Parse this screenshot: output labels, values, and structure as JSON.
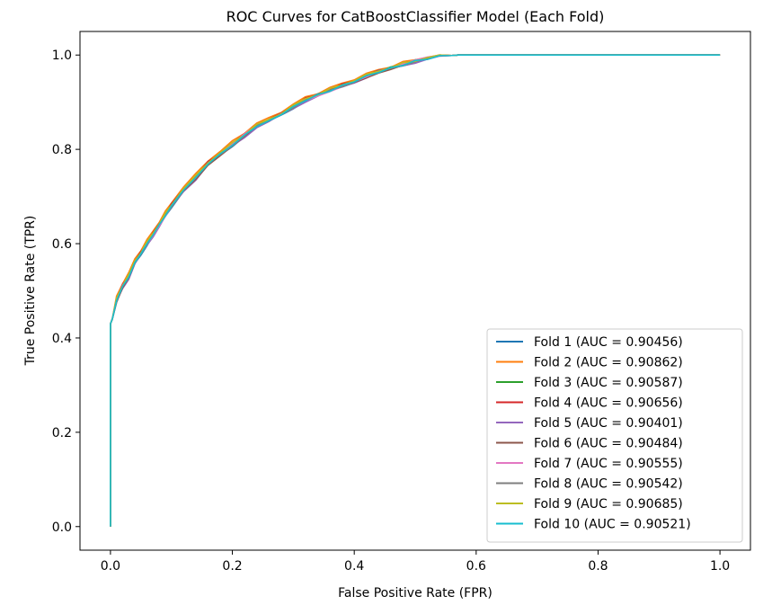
{
  "chart_data": {
    "type": "line",
    "title": "ROC Curves for CatBoostClassifier Model (Each Fold)",
    "xlabel": "False Positive Rate (FPR)",
    "ylabel": "True Positive Rate (TPR)",
    "xlim": [
      -0.05,
      1.05
    ],
    "ylim": [
      -0.05,
      1.05
    ],
    "xticks": [
      "0.0",
      "0.2",
      "0.4",
      "0.6",
      "0.8",
      "1.0"
    ],
    "yticks": [
      "0.0",
      "0.2",
      "0.4",
      "0.6",
      "0.8",
      "1.0"
    ],
    "grid": false,
    "legend_position": "bottom-right",
    "series": [
      {
        "name": "Fold 1 (AUC = 0.90456)",
        "color": "#1f77b4",
        "auc": 0.90456
      },
      {
        "name": "Fold 2 (AUC = 0.90862)",
        "color": "#ff7f0e",
        "auc": 0.90862
      },
      {
        "name": "Fold 3 (AUC = 0.90587)",
        "color": "#2ca02c",
        "auc": 0.90587
      },
      {
        "name": "Fold 4 (AUC = 0.90656)",
        "color": "#d62728",
        "auc": 0.90656
      },
      {
        "name": "Fold 5 (AUC = 0.90401)",
        "color": "#9467bd",
        "auc": 0.90401
      },
      {
        "name": "Fold 6 (AUC = 0.90484)",
        "color": "#8c564b",
        "auc": 0.90484
      },
      {
        "name": "Fold 7 (AUC = 0.90555)",
        "color": "#e377c2",
        "auc": 0.90555
      },
      {
        "name": "Fold 8 (AUC = 0.90542)",
        "color": "#7f7f7f",
        "auc": 0.90542
      },
      {
        "name": "Fold 9 (AUC = 0.90685)",
        "color": "#bcbd22",
        "auc": 0.90685
      },
      {
        "name": "Fold 10 (AUC = 0.90521)",
        "color": "#17becf",
        "auc": 0.90521
      }
    ],
    "curve_points": {
      "x": [
        0,
        0,
        0.003,
        0.01,
        0.02,
        0.03,
        0.04,
        0.05,
        0.06,
        0.07,
        0.08,
        0.09,
        0.1,
        0.12,
        0.14,
        0.16,
        0.18,
        0.2,
        0.22,
        0.24,
        0.26,
        0.28,
        0.3,
        0.32,
        0.34,
        0.36,
        0.38,
        0.4,
        0.42,
        0.44,
        0.46,
        0.48,
        0.5,
        0.52,
        0.54,
        0.56,
        0.57,
        1.0
      ],
      "y": [
        0,
        0.43,
        0.44,
        0.48,
        0.51,
        0.53,
        0.56,
        0.58,
        0.6,
        0.62,
        0.64,
        0.66,
        0.68,
        0.715,
        0.74,
        0.77,
        0.79,
        0.81,
        0.83,
        0.85,
        0.86,
        0.875,
        0.89,
        0.905,
        0.915,
        0.925,
        0.935,
        0.945,
        0.955,
        0.965,
        0.972,
        0.98,
        0.987,
        0.993,
        0.997,
        0.999,
        1.0,
        1.0
      ]
    }
  }
}
